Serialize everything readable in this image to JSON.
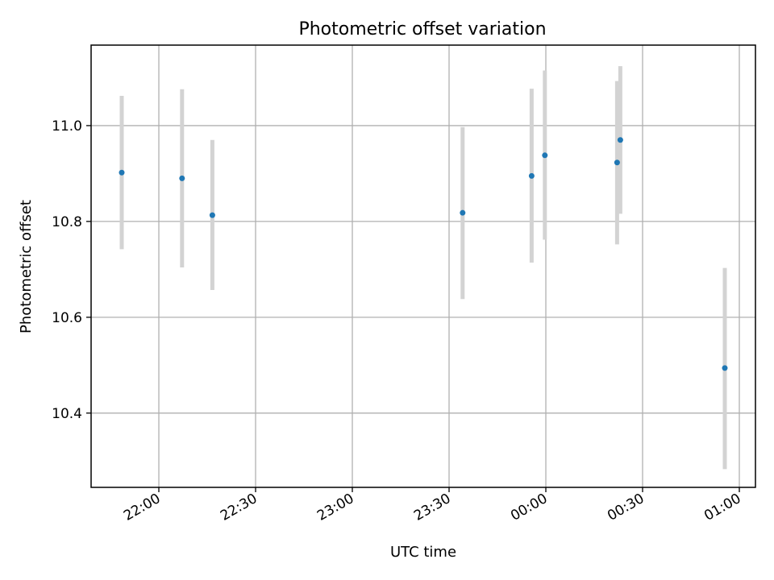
{
  "chart_data": {
    "type": "scatter",
    "title": "Photometric offset variation",
    "xlabel": "UTC time",
    "ylabel": "Photometric offset",
    "x_tick_labels": [
      "22:00",
      "22:30",
      "23:00",
      "23:30",
      "00:00",
      "00:30",
      "01:00"
    ],
    "x_ticks_minutes_since_midnight": [
      1320,
      1350,
      1380,
      1410,
      1440,
      1470,
      1500
    ],
    "xlim_minutes_since_midnight": [
      1299,
      1505
    ],
    "y_tick_labels": [
      "10.4",
      "10.6",
      "10.8",
      "11.0"
    ],
    "y_ticks": [
      10.4,
      10.6,
      10.8,
      11.0
    ],
    "ylim": [
      10.245,
      11.168
    ],
    "grid": true,
    "series": [
      {
        "color": "#1f77b4",
        "error_bar_color": "#d3d3d3",
        "points": [
          {
            "time": "21:48",
            "x": 1308.5,
            "y": 10.902,
            "ylow": 10.742,
            "yhigh": 11.062
          },
          {
            "time": "22:07",
            "x": 1327.2,
            "y": 10.89,
            "ylow": 10.704,
            "yhigh": 11.076
          },
          {
            "time": "22:16",
            "x": 1336.6,
            "y": 10.813,
            "ylow": 10.657,
            "yhigh": 10.97
          },
          {
            "time": "23:34",
            "x": 1414.2,
            "y": 10.818,
            "ylow": 10.638,
            "yhigh": 10.997
          },
          {
            "time": "23:55",
            "x": 1435.6,
            "y": 10.895,
            "ylow": 10.714,
            "yhigh": 11.077
          },
          {
            "time": "23:59",
            "x": 1439.7,
            "y": 10.938,
            "ylow": 10.762,
            "yhigh": 11.115
          },
          {
            "time": "00:22",
            "x": 1462.1,
            "y": 10.923,
            "ylow": 10.752,
            "yhigh": 11.093
          },
          {
            "time": "00:23",
            "x": 1463.1,
            "y": 10.97,
            "ylow": 10.816,
            "yhigh": 11.124
          },
          {
            "time": "00:55",
            "x": 1495.5,
            "y": 10.494,
            "ylow": 10.283,
            "yhigh": 10.703
          }
        ]
      }
    ]
  }
}
